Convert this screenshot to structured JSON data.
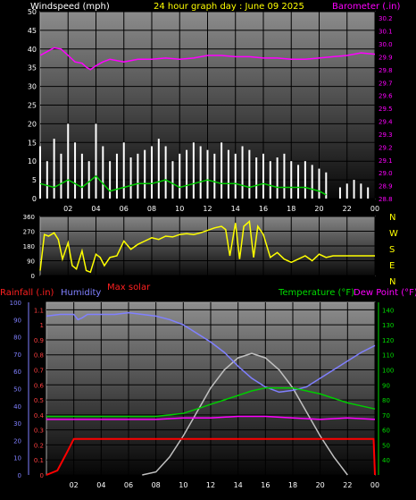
{
  "top": {
    "left_label": "Windspeed (mph)",
    "center_title": "24 hour graph day : June 09 2025",
    "right_label": "Barometer (.in)"
  },
  "middle": {
    "compass_labels": [
      "N",
      "W",
      "S",
      "E",
      "N"
    ],
    "footer_label": "Max solar"
  },
  "bottom": {
    "rainfall_label": "Rainfall (.in)",
    "humidity_label": "Humidity",
    "temperature_label": "Temperature (°F)",
    "dewpoint_label": "Dew Point (°F)"
  },
  "colors": {
    "wind": "#ffffff",
    "wind_avg": "#00cc00",
    "barometer": "#ff00ff",
    "direction": "#ffff00",
    "rain": "#ff0000",
    "humidity": "#8080ff",
    "temperature": "#00cc00",
    "dewpoint": "#ff00ff",
    "solar": "#c0c0c0"
  },
  "chart_data": [
    {
      "type": "line",
      "title": "24 hour graph day : June 09 2025",
      "x_ticks": [
        "02",
        "04",
        "06",
        "08",
        "10",
        "12",
        "14",
        "16",
        "18",
        "20",
        "22",
        "00"
      ],
      "y_left_label": "Windspeed (mph)",
      "y_left_ticks": [
        0,
        5,
        10,
        15,
        20,
        25,
        30,
        35,
        40,
        45,
        50
      ],
      "y_left_lim": [
        0,
        50
      ],
      "y_right_label": "Barometer (.in)",
      "y_right_ticks": [
        28.8,
        28.9,
        29.0,
        29.1,
        29.2,
        29.3,
        29.4,
        29.5,
        29.6,
        29.7,
        29.8,
        29.9,
        30.0,
        30.1,
        30.2
      ],
      "y_right_lim": [
        28.8,
        30.25
      ],
      "series": [
        {
          "name": "Windspeed (mph)",
          "hours": [
            0.0,
            0.5,
            1.0,
            1.5,
            2.0,
            2.5,
            3.0,
            3.5,
            4.0,
            4.5,
            5.0,
            5.5,
            6.0,
            6.5,
            7.0,
            7.5,
            8.0,
            8.5,
            9.0,
            9.5,
            10.0,
            10.5,
            11.0,
            11.5,
            12.0,
            12.5,
            13.0,
            13.5,
            14.0,
            14.5,
            15.0,
            15.5,
            16.0,
            16.5,
            17.0,
            17.5,
            18.0,
            18.5,
            19.0,
            19.5,
            20.0,
            20.5,
            21.5,
            22.0,
            22.5,
            23.0,
            23.5
          ],
          "values": [
            14,
            10,
            16,
            12,
            20,
            15,
            12,
            10,
            20,
            14,
            10,
            12,
            15,
            11,
            12,
            13,
            14,
            16,
            14,
            10,
            12,
            13,
            15,
            14,
            13,
            12,
            15,
            13,
            12,
            14,
            13,
            11,
            12,
            10,
            11,
            12,
            10,
            9,
            10,
            9,
            8,
            7,
            3,
            4,
            5,
            4,
            3
          ]
        },
        {
          "name": "Wind average",
          "hours": [
            0.0,
            1.0,
            2.0,
            3.0,
            4.0,
            5.0,
            6.0,
            7.0,
            8.0,
            9.0,
            10.0,
            11.0,
            12.0,
            13.0,
            14.0,
            15.0,
            16.0,
            17.0,
            18.0,
            19.0,
            20.0,
            20.5
          ],
          "values": [
            4,
            3,
            5,
            3,
            6,
            2,
            3,
            4,
            4,
            5,
            3,
            4,
            5,
            4,
            4,
            3,
            4,
            3,
            3,
            3,
            2,
            1
          ]
        },
        {
          "name": "Barometer (.in)",
          "hours": [
            0.0,
            0.5,
            1.0,
            1.5,
            2.0,
            2.5,
            3.0,
            3.3,
            3.6,
            4.0,
            4.5,
            5.0,
            6.0,
            7.0,
            8.0,
            9.0,
            10.0,
            11.0,
            12.0,
            13.0,
            14.0,
            15.0,
            16.0,
            17.0,
            18.0,
            19.0,
            20.0,
            21.0,
            22.0,
            23.0,
            24.0
          ],
          "values": [
            29.91,
            29.94,
            29.97,
            29.96,
            29.91,
            29.86,
            29.85,
            29.82,
            29.8,
            29.83,
            29.86,
            29.88,
            29.86,
            29.88,
            29.88,
            29.89,
            29.88,
            29.89,
            29.91,
            29.91,
            29.9,
            29.9,
            29.89,
            29.89,
            29.88,
            29.88,
            29.89,
            29.9,
            29.91,
            29.93,
            29.92
          ]
        }
      ]
    },
    {
      "type": "line",
      "y_left_ticks": [
        0,
        90,
        180,
        270,
        360
      ],
      "y_left_lim": [
        0,
        360
      ],
      "y_right_ticks": [
        "N",
        "W",
        "S",
        "E",
        "N"
      ],
      "series": [
        {
          "name": "Wind direction",
          "hours": [
            0.0,
            0.3,
            0.6,
            1.0,
            1.3,
            1.6,
            2.0,
            2.3,
            2.6,
            3.0,
            3.3,
            3.6,
            4.0,
            4.3,
            4.6,
            5.0,
            5.5,
            6.0,
            6.5,
            7.0,
            7.5,
            8.0,
            8.5,
            9.0,
            9.5,
            10.0,
            10.5,
            11.0,
            11.5,
            12.0,
            12.5,
            13.0,
            13.3,
            13.6,
            14.0,
            14.3,
            14.6,
            15.0,
            15.3,
            15.6,
            16.0,
            16.5,
            17.0,
            17.5,
            18.0,
            18.5,
            19.0,
            19.5,
            20.0,
            20.5,
            21.0,
            22.0,
            23.0,
            24.0
          ],
          "values": [
            30,
            250,
            240,
            260,
            220,
            100,
            200,
            60,
            40,
            150,
            30,
            20,
            130,
            110,
            60,
            110,
            120,
            210,
            160,
            190,
            210,
            230,
            220,
            240,
            235,
            250,
            255,
            250,
            260,
            275,
            290,
            300,
            280,
            120,
            320,
            100,
            300,
            330,
            110,
            300,
            250,
            110,
            140,
            100,
            80,
            100,
            120,
            90,
            130,
            110,
            120,
            120,
            120,
            120
          ]
        }
      ]
    },
    {
      "type": "line",
      "x_ticks": [
        "02",
        "04",
        "06",
        "08",
        "10",
        "12",
        "14",
        "16",
        "18",
        "20",
        "22",
        "00"
      ],
      "y_left_label": "Rainfall (.in)",
      "y_left_ticks": [
        0,
        0.1,
        0.2,
        0.3,
        0.4,
        0.5,
        0.6,
        0.7,
        0.8,
        0.9,
        1.0,
        1.1
      ],
      "y_left_lim": [
        0,
        1.15
      ],
      "y_humidity_label": "Humidity",
      "y_humidity_ticks": [
        0,
        10,
        20,
        30,
        40,
        50,
        60,
        70,
        80,
        90,
        100
      ],
      "y_humidity_lim": [
        0,
        100
      ],
      "y_right_label": "Temperature (°F)",
      "y_right_ticks": [
        40,
        50,
        60,
        70,
        80,
        90,
        100,
        110,
        120,
        130,
        140
      ],
      "y_right_lim": [
        30,
        145
      ],
      "series": [
        {
          "name": "Rainfall (.in)",
          "hours": [
            0.0,
            0.8,
            1.5,
            2.0,
            3.0,
            6.0,
            10.0,
            14.0,
            18.0,
            22.0,
            23.9,
            24.0
          ],
          "values": [
            0.0,
            0.03,
            0.15,
            0.24,
            0.24,
            0.24,
            0.24,
            0.24,
            0.24,
            0.24,
            0.24,
            0.0
          ]
        },
        {
          "name": "Humidity",
          "hours": [
            0.0,
            1.0,
            2.0,
            2.3,
            2.6,
            3.0,
            4.0,
            5.0,
            6.0,
            7.0,
            8.0,
            9.0,
            10.0,
            11.0,
            12.0,
            13.0,
            14.0,
            15.0,
            16.0,
            17.0,
            18.0,
            19.0,
            20.0,
            21.0,
            22.0,
            23.0,
            24.0
          ],
          "values": [
            92,
            93,
            93,
            90,
            91,
            93,
            93,
            93,
            94,
            93,
            92,
            90,
            87,
            82,
            77,
            71,
            63,
            56,
            51,
            48,
            49,
            51,
            56,
            61,
            66,
            71,
            75
          ]
        },
        {
          "name": "Temperature (°F)",
          "hours": [
            0.0,
            1.0,
            2.0,
            3.0,
            4.0,
            5.0,
            6.0,
            7.0,
            8.0,
            9.0,
            10.0,
            11.0,
            12.0,
            13.0,
            14.0,
            15.0,
            16.0,
            17.0,
            18.0,
            19.0,
            20.0,
            21.0,
            22.0,
            23.0,
            24.0
          ],
          "values": [
            69,
            69,
            69,
            69,
            69,
            69,
            69,
            69,
            69,
            70,
            71,
            74,
            77,
            80,
            83,
            86,
            88,
            88,
            88,
            86,
            84,
            81,
            78,
            76,
            74
          ]
        },
        {
          "name": "Dew Point (°F)",
          "hours": [
            0.0,
            2.0,
            4.0,
            6.0,
            8.0,
            10.0,
            12.0,
            14.0,
            16.0,
            18.0,
            20.0,
            22.0,
            24.0
          ],
          "values": [
            67,
            67,
            67,
            67,
            67,
            68,
            68,
            69,
            69,
            68,
            67,
            68,
            67
          ]
        },
        {
          "name": "Max solar",
          "hours": [
            7.0,
            8.0,
            9.0,
            10.0,
            11.0,
            12.0,
            13.0,
            14.0,
            15.0,
            16.0,
            17.0,
            18.0,
            19.0,
            20.0,
            21.0,
            22.0
          ],
          "values": [
            0.0,
            0.02,
            0.12,
            0.26,
            0.42,
            0.58,
            0.7,
            0.78,
            0.81,
            0.78,
            0.7,
            0.58,
            0.42,
            0.26,
            0.12,
            0.0
          ]
        }
      ]
    }
  ]
}
